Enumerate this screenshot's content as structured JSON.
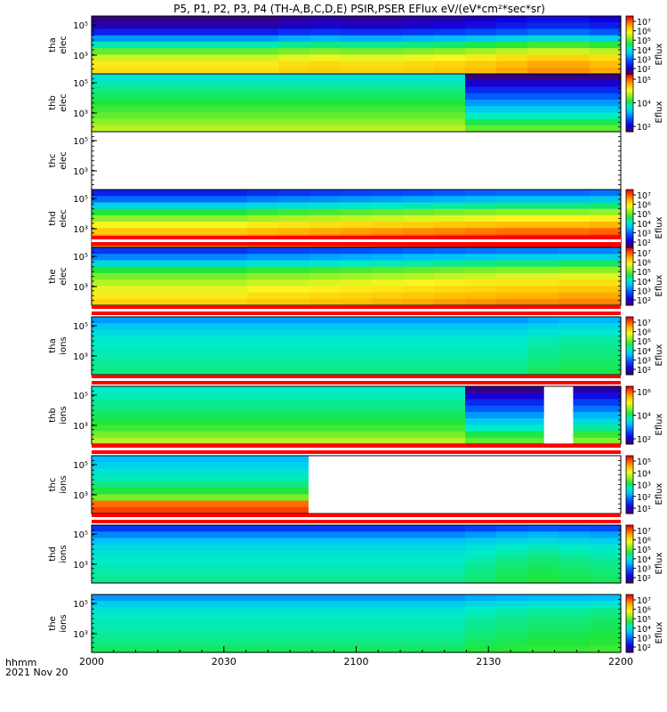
{
  "chart_data": {
    "type": "heatmap",
    "title": "P5, P1, P2, P3, P4 (TH-A,B,C,D,E) PSIR,PSER EFlux eV/(eV*cm²*sec*sr)",
    "x_axis": {
      "range": [
        "2000",
        "2200"
      ],
      "ticks": [
        "2000",
        "2030",
        "2100",
        "2130",
        "2200"
      ],
      "corner_labels": [
        "hhmm",
        "2021 Nov 20"
      ]
    },
    "colorbar_label": "Eflux",
    "y_scale": "log",
    "panels": [
      {
        "probe": "tha",
        "species": "elec",
        "ylabel": [
          "tha",
          "elec"
        ],
        "yticks": [
          "10³",
          "10⁵"
        ],
        "cbar_ticks": [
          "10⁷",
          "10⁶",
          "10⁵",
          "10⁴",
          "10³",
          "10²"
        ],
        "bands": [
          0.02,
          0.06,
          0.15,
          0.3,
          0.45,
          0.58,
          0.68,
          0.74,
          0.76
        ],
        "t_mod": [
          0,
          0,
          0,
          0,
          0,
          0,
          0.02,
          0.03,
          0.02,
          0.02,
          0.03,
          0.04,
          0.06,
          0.08,
          0.1,
          0.1,
          0.08
        ],
        "gaps": [],
        "dropouts": [],
        "flag": false
      },
      {
        "probe": "thb",
        "species": "elec",
        "ylabel": [
          "thb",
          "elec"
        ],
        "yticks": [
          "10³",
          "10⁵"
        ],
        "cbar_ticks": [
          "10⁵",
          "10⁴",
          "10²"
        ],
        "bands": [
          0.42,
          0.45,
          0.48,
          0.5,
          0.52,
          0.55,
          0.58,
          0.62,
          0.66
        ],
        "t_mod": [
          0,
          0,
          0,
          0,
          0,
          0,
          0,
          0,
          0,
          0,
          0,
          0,
          0,
          0,
          0,
          0,
          0
        ],
        "gaps": [],
        "dropouts": [
          [
            0.705,
            1.0,
            0.02
          ]
        ],
        "flag": false
      },
      {
        "probe": "thc",
        "species": "elec",
        "ylabel": [
          "thc",
          "elec"
        ],
        "yticks": [
          "10³",
          "10⁵"
        ],
        "cbar_ticks": [],
        "bands": [],
        "t_mod": [],
        "gaps": [
          [
            0,
            1
          ]
        ],
        "dropouts": [],
        "flag": false
      },
      {
        "probe": "thd",
        "species": "elec",
        "ylabel": [
          "thd",
          "elec"
        ],
        "yticks": [
          "10³",
          "10⁵"
        ],
        "cbar_ticks": [
          "10⁷",
          "10⁶",
          "10⁵",
          "10⁴",
          "10³",
          "10²"
        ],
        "bands": [
          0.15,
          0.25,
          0.38,
          0.52,
          0.62,
          0.72,
          0.8,
          0.86,
          0.9
        ],
        "t_mod": [
          0,
          0,
          0,
          0,
          0,
          0.02,
          0.03,
          0.04,
          0.05,
          0.06,
          0.07,
          0.08,
          0.09,
          0.1,
          0.1,
          0.1,
          0.11
        ],
        "gaps": [],
        "dropouts": [],
        "flag": false
      },
      {
        "probe": "the",
        "species": "elec",
        "ylabel": [
          "the",
          "elec"
        ],
        "yticks": [
          "10³",
          "10⁵"
        ],
        "cbar_ticks": [
          "10⁷",
          "10⁶",
          "10⁵",
          "10⁴",
          "10³",
          "10²"
        ],
        "bands": [
          0.18,
          0.28,
          0.4,
          0.52,
          0.6,
          0.66,
          0.7,
          0.74,
          0.78
        ],
        "t_mod": [
          0,
          0,
          0,
          0,
          0,
          0.02,
          0.02,
          0.03,
          0.04,
          0.05,
          0.06,
          0.07,
          0.08,
          0.09,
          0.09,
          0.1,
          0.1
        ],
        "gaps": [],
        "dropouts": [],
        "flag": true
      },
      {
        "probe": "tha",
        "species": "ions",
        "ylabel": [
          "tha",
          "ions"
        ],
        "yticks": [
          "10³",
          "10⁵"
        ],
        "cbar_ticks": [
          "10⁷",
          "10⁶",
          "10⁵",
          "10⁴",
          "10³",
          "10²"
        ],
        "bands": [
          0.3,
          0.36,
          0.4,
          0.43,
          0.44,
          0.45,
          0.46,
          0.47,
          0.48
        ],
        "t_mod": [
          0,
          0,
          0,
          0,
          0,
          0,
          0,
          0,
          0,
          0,
          0,
          0,
          0,
          0,
          0.02,
          0.03,
          0.03
        ],
        "gaps": [],
        "dropouts": [],
        "flag": true
      },
      {
        "probe": "thb",
        "species": "ions",
        "ylabel": [
          "thb",
          "ions"
        ],
        "yticks": [
          "10³",
          "10⁵"
        ],
        "cbar_ticks": [
          "10⁶",
          "10⁴",
          "10²"
        ],
        "bands": [
          0.44,
          0.45,
          0.47,
          0.48,
          0.5,
          0.52,
          0.55,
          0.6,
          0.66
        ],
        "t_mod": [
          0,
          0,
          0,
          0,
          0,
          0,
          0,
          0,
          0,
          0,
          0,
          0,
          0,
          0,
          0,
          0,
          0
        ],
        "gaps": [
          [
            0.855,
            0.91
          ]
        ],
        "dropouts": [
          [
            0.705,
            0.855,
            0.02
          ],
          [
            0.91,
            1.0,
            0.05
          ]
        ],
        "flag": true
      },
      {
        "probe": "thc",
        "species": "ions",
        "ylabel": [
          "thc",
          "ions"
        ],
        "yticks": [
          "10³",
          "10⁵"
        ],
        "cbar_ticks": [
          "10⁵",
          "10⁴",
          "10³",
          "10²",
          "10¹"
        ],
        "bands": [
          0.34,
          0.38,
          0.42,
          0.45,
          0.48,
          0.52,
          0.6,
          0.9,
          0.94
        ],
        "t_mod": [
          0,
          0,
          0,
          0,
          0,
          0,
          0,
          0,
          0,
          0,
          0,
          0,
          0,
          0,
          0,
          0,
          0
        ],
        "gaps": [
          [
            0.41,
            1.0
          ]
        ],
        "dropouts": [],
        "flag": true
      },
      {
        "probe": "thd",
        "species": "ions",
        "ylabel": [
          "thd",
          "ions"
        ],
        "yticks": [
          "10³",
          "10⁵"
        ],
        "cbar_ticks": [
          "10⁷",
          "10⁶",
          "10⁵",
          "10⁴",
          "10³",
          "10²"
        ],
        "bands": [
          0.18,
          0.28,
          0.35,
          0.4,
          0.42,
          0.44,
          0.45,
          0.46,
          0.47
        ],
        "t_mod": [
          0,
          0,
          0,
          0,
          0,
          0,
          0,
          0,
          0,
          0,
          0,
          0,
          0.02,
          0.04,
          0.05,
          0.04,
          0.03
        ],
        "gaps": [],
        "dropouts": [],
        "flag": true
      },
      {
        "probe": "the",
        "species": "ions",
        "ylabel": [
          "the",
          "ions"
        ],
        "yticks": [
          "10³",
          "10⁵"
        ],
        "cbar_ticks": [
          "10⁷",
          "10⁶",
          "10⁵",
          "10⁴",
          "10³",
          "10²"
        ],
        "bands": [
          0.3,
          0.38,
          0.42,
          0.44,
          0.45,
          0.46,
          0.47,
          0.48,
          0.5
        ],
        "t_mod": [
          0,
          0,
          0,
          0,
          0,
          0,
          0,
          0,
          0,
          0,
          0,
          0,
          0.02,
          0.03,
          0.04,
          0.04,
          0.05
        ],
        "gaps": [],
        "dropouts": [],
        "flag": false
      }
    ],
    "colorscale": "rainbow (purple-blue-cyan-green-yellow-orange-red)",
    "flag_colors": [
      "#ff0000",
      "#ffffff"
    ]
  }
}
